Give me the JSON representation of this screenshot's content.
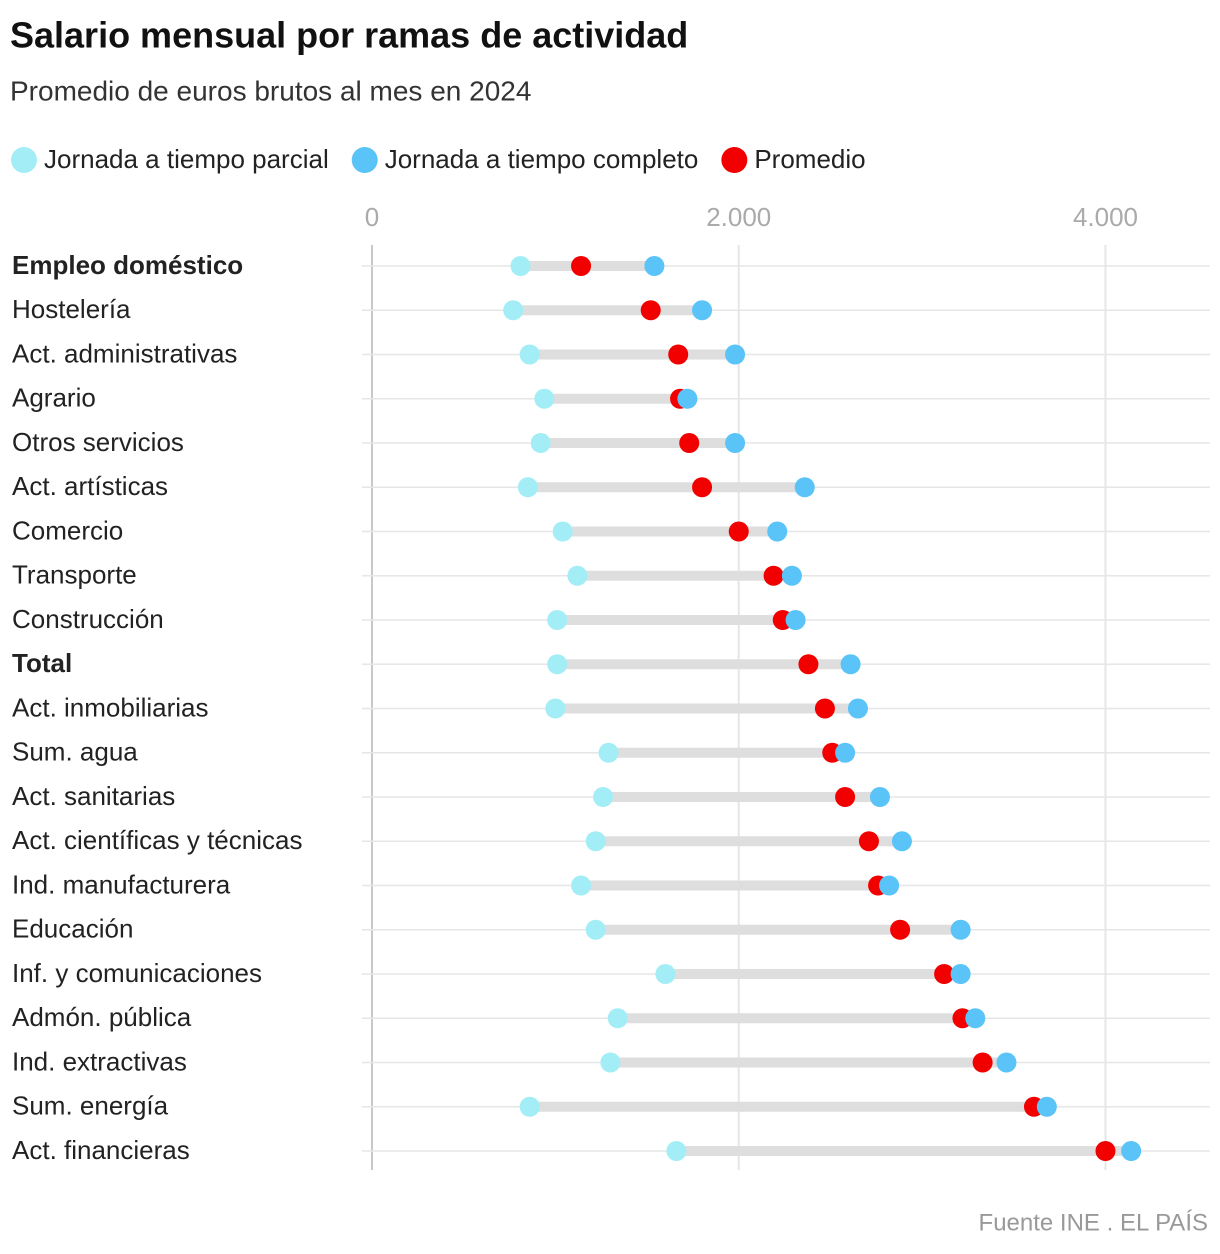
{
  "chart_data": {
    "type": "dumbbell",
    "title": "Salario mensual por ramas de actividad",
    "subtitle": "Promedio de euros brutos al mes en 2024",
    "source": "Fuente INE . EL PAÍS",
    "categories": [
      "Empleo doméstico",
      "Hostelería",
      "Act. administrativas",
      "Agrario",
      "Otros servicios",
      "Act. artísticas",
      "Comercio",
      "Transporte",
      "Construcción",
      "Total",
      "Act. inmobiliarias",
      "Sum. agua",
      "Act. sanitarias",
      "Act. científicas y técnicas",
      "Ind. manufacturera",
      "Educación",
      "Inf. y comunicaciones",
      "Admón. pública",
      "Ind. extractivas",
      "Sum. energía",
      "Act. financieras"
    ],
    "bold_categories": [
      0,
      9
    ],
    "series": [
      {
        "name": "Jornada a tiempo parcial",
        "color": "#a3eef6",
        "values": [
          810,
          770,
          860,
          940,
          920,
          850,
          1040,
          1120,
          1010,
          1010,
          1000,
          1290,
          1260,
          1220,
          1140,
          1220,
          1600,
          1340,
          1300,
          860,
          1660
        ]
      },
      {
        "name": "Jornada a tiempo completo",
        "color": "#5ac3f8",
        "values": [
          1540,
          1800,
          1980,
          1720,
          1980,
          2360,
          2210,
          2290,
          2310,
          2610,
          2650,
          2580,
          2770,
          2890,
          2820,
          3210,
          3210,
          3290,
          3460,
          3680,
          4140
        ]
      },
      {
        "name": "Promedio",
        "color": "#f20000",
        "values": [
          1140,
          1520,
          1670,
          1680,
          1730,
          1800,
          2000,
          2190,
          2240,
          2380,
          2470,
          2510,
          2580,
          2710,
          2760,
          2880,
          3120,
          3220,
          3330,
          3610,
          4000
        ]
      }
    ],
    "xlim": [
      0,
      4570
    ],
    "xticks": [
      0,
      {
        "value": 2000,
        "label": "2.000"
      },
      {
        "value": 4000,
        "label": "4.000"
      }
    ],
    "grid": true
  }
}
